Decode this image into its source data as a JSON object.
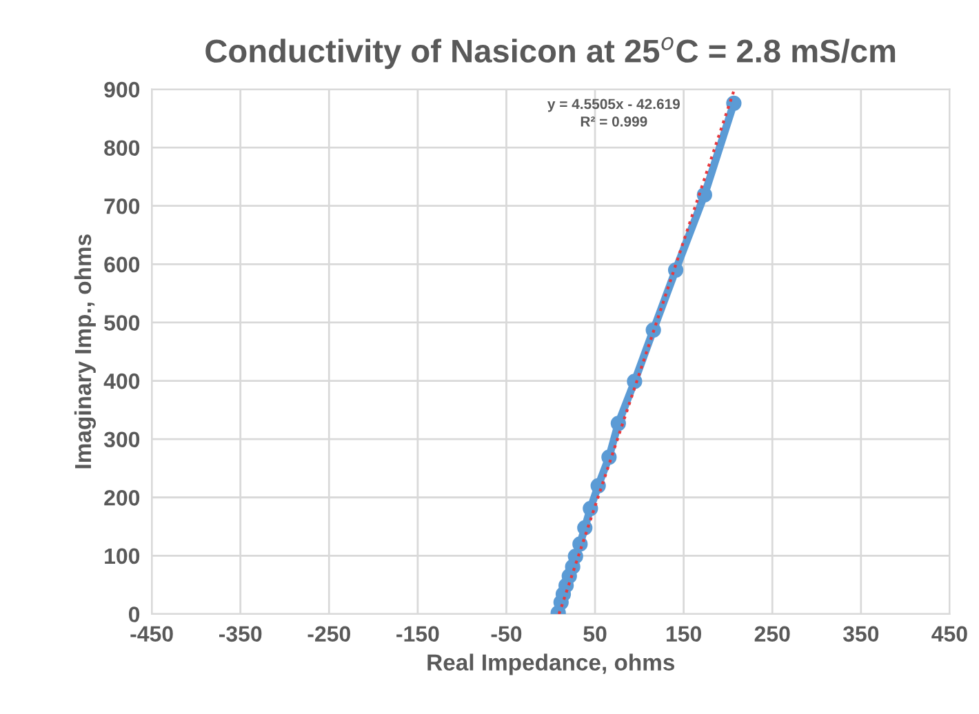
{
  "chart_data": {
    "type": "line",
    "title": "Conductivity of Nasicon at 25$^{o}$C = 2.8 mS/cm",
    "xlabel": "Real Impedance, ohms",
    "ylabel": "Imaginary Imp., ohms",
    "xlim": [
      -450,
      450
    ],
    "xticks": [
      -450,
      -350,
      -250,
      -150,
      -50,
      50,
      150,
      250,
      350,
      450
    ],
    "ylim": [
      0,
      900
    ],
    "yticks": [
      0,
      100,
      200,
      300,
      400,
      500,
      600,
      700,
      800,
      900
    ],
    "grid": true,
    "legend": false,
    "series": [
      {
        "color": "#5b9bd5",
        "marker": "circle",
        "line_style": "solid",
        "x": [
          8.5,
          11.7,
          14.2,
          17.4,
          21,
          24.8,
          28,
          33.1,
          38.5,
          44.8,
          53.6,
          65.8,
          76.3,
          94.6,
          115.8,
          141,
          173.5,
          206.6
        ],
        "values": [
          2,
          20,
          34,
          49,
          65,
          81,
          99,
          120,
          148,
          181,
          220,
          269,
          327,
          399,
          487,
          590,
          719,
          876
        ]
      },
      {
        "color": "#e8383d",
        "marker": "none",
        "line_style": "dotted",
        "x": [
          9.4,
          207
        ],
        "values": [
          0,
          899
        ]
      }
    ],
    "annotations": [
      "y = 4.5505x - 42.619\nR² = 0.999"
    ]
  }
}
